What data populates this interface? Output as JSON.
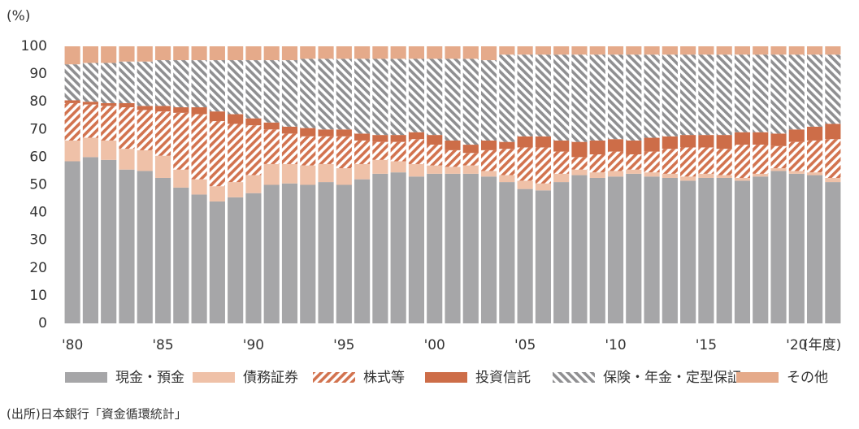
{
  "chart_data": {
    "type": "stacked_bar",
    "ylabel": "(%)",
    "xlabel": "(年度)",
    "source": "(出所)日本銀行「資金循環統計」",
    "categories": [
      "'80",
      null,
      null,
      null,
      null,
      "'85",
      null,
      null,
      null,
      null,
      "'90",
      null,
      null,
      null,
      null,
      "'95",
      null,
      null,
      null,
      null,
      "'00",
      null,
      null,
      null,
      null,
      "'05",
      null,
      null,
      null,
      null,
      "'10",
      null,
      null,
      null,
      null,
      "'15",
      null,
      null,
      null,
      null,
      "'20",
      null,
      null
    ],
    "ylim": [
      0,
      100
    ],
    "yticks": [
      0,
      10,
      20,
      30,
      40,
      50,
      60,
      70,
      80,
      90,
      100
    ],
    "grid": false,
    "legend": "bottom",
    "series": [
      {
        "name": "現金・預金",
        "color": "#a6a6a8",
        "values": [
          58.5,
          60,
          59,
          55.5,
          55,
          52.5,
          49,
          46.5,
          44,
          45.5,
          47,
          50,
          50.5,
          50,
          51,
          50,
          52,
          54,
          54.5,
          53,
          54,
          54,
          54,
          53,
          51,
          48.5,
          48,
          51,
          53.5,
          52.5,
          53,
          54,
          53,
          52.5,
          51.5,
          52.5,
          52.5,
          51.5,
          53,
          55,
          54,
          53.5,
          51
        ]
      },
      {
        "name": "債務証券",
        "color": "#efc1a8",
        "values": [
          7.5,
          7,
          7,
          7.5,
          7.5,
          8,
          6.5,
          5.5,
          5.5,
          5.5,
          6.5,
          7.5,
          7,
          7,
          6.5,
          6,
          5.5,
          5,
          4,
          4.5,
          3,
          2.5,
          3,
          2,
          2.5,
          3,
          2.5,
          3,
          2,
          2,
          2,
          1.5,
          1.5,
          1.5,
          1.5,
          1.5,
          1,
          1,
          1,
          1,
          1,
          1,
          1.5
        ]
      },
      {
        "name": "株式等",
        "color": "#d2734f",
        "pattern": "diagonal-up",
        "values": [
          13.5,
          12,
          12.5,
          15,
          14.5,
          16,
          20.5,
          23.5,
          23.5,
          21,
          18,
          12.5,
          11,
          10.5,
          10,
          11.5,
          8.5,
          6.5,
          7,
          9,
          7.5,
          6,
          4.5,
          7.5,
          9.5,
          12,
          13,
          8,
          4.5,
          6.5,
          7,
          5.5,
          7.5,
          9,
          10.5,
          9.5,
          9.5,
          12,
          10.5,
          8,
          10.5,
          11.5,
          14
        ]
      },
      {
        "name": "投資信託",
        "color": "#cd6d48",
        "values": [
          1,
          1,
          1,
          1.5,
          1.5,
          2,
          2,
          2.5,
          3.5,
          3.5,
          2.5,
          2.5,
          2.5,
          3,
          2.5,
          2.5,
          2.5,
          2.5,
          2.5,
          2.5,
          3.5,
          3.5,
          3,
          3.5,
          2.5,
          4,
          4,
          4,
          5.5,
          5,
          4.5,
          5,
          5,
          4.5,
          4.5,
          4.5,
          5,
          4.5,
          4.5,
          4.5,
          4.5,
          5,
          5.5
        ]
      },
      {
        "name": "保険・年金・定型保証",
        "color": "#8f8f91",
        "pattern": "diagonal-down",
        "values": [
          13,
          14,
          14.5,
          15,
          16,
          16.5,
          17,
          17,
          18.5,
          19.5,
          21,
          22.5,
          24,
          25,
          25.5,
          25.5,
          27,
          27.5,
          27.5,
          26.5,
          27.5,
          29.5,
          31,
          29,
          31.5,
          29.5,
          29.5,
          31,
          31.5,
          31,
          30.5,
          31,
          30,
          29.5,
          29,
          29,
          29,
          28,
          28,
          28.5,
          27,
          26,
          25
        ]
      },
      {
        "name": "その他",
        "color": "#e5aa8a",
        "values": [
          6.5,
          6,
          6,
          5.5,
          5.5,
          5,
          5,
          5,
          5,
          5,
          5,
          5,
          5,
          4.5,
          4.5,
          4.5,
          4.5,
          4.5,
          4.5,
          4.5,
          4.5,
          4.5,
          4.5,
          5,
          3,
          3,
          3,
          3,
          3,
          3,
          3,
          3,
          3,
          3,
          3,
          3,
          3,
          3,
          3,
          3,
          3,
          3,
          3
        ]
      }
    ]
  }
}
